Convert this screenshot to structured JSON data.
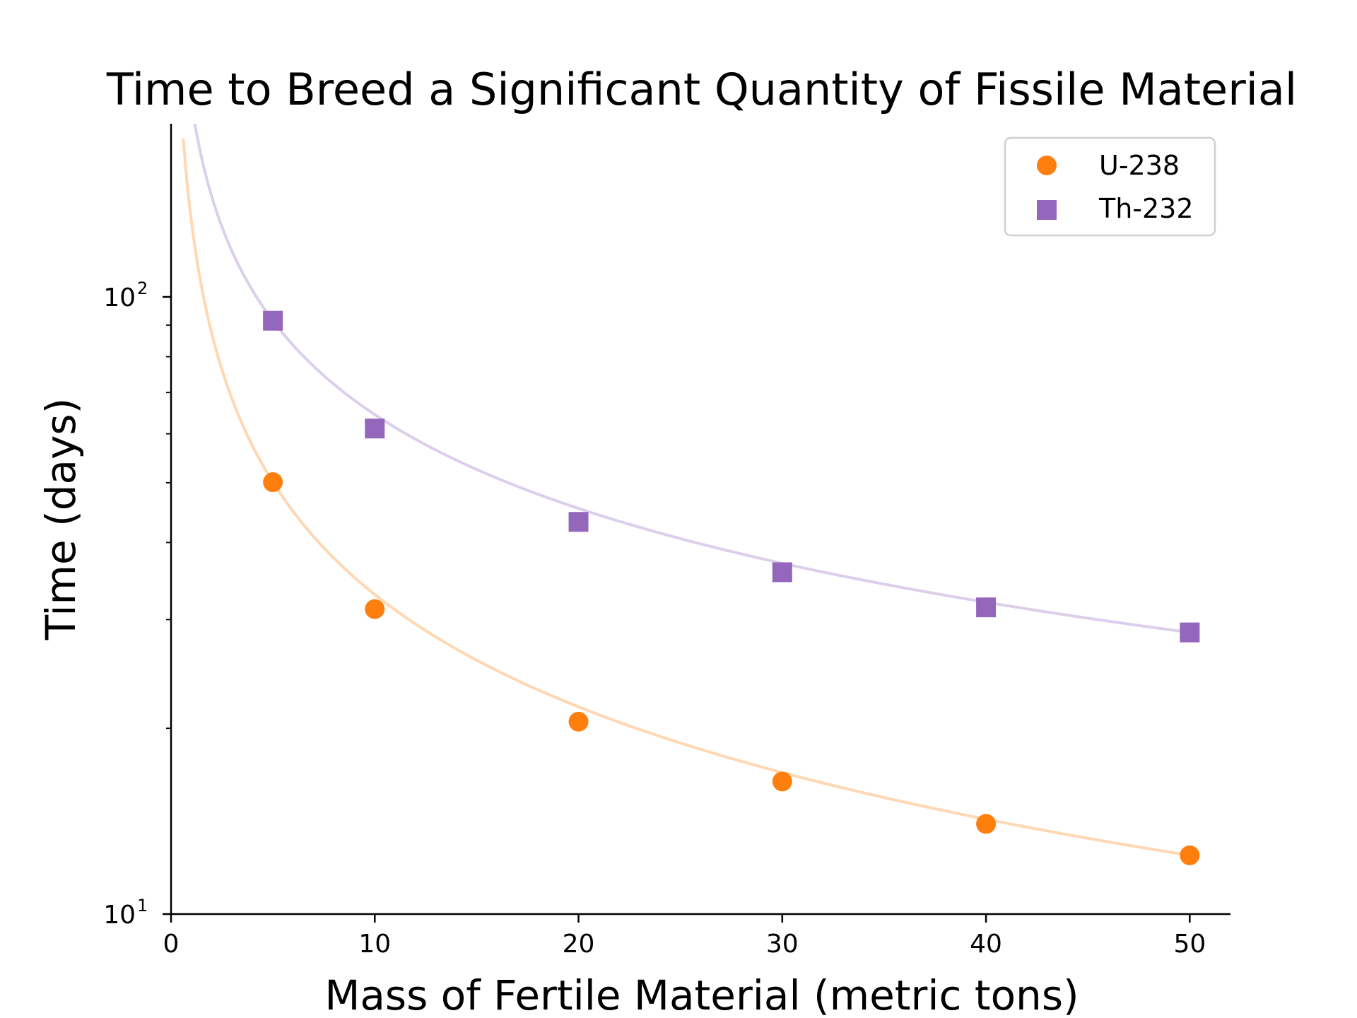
{
  "chart_data": {
    "type": "scatter",
    "title": "Time to Breed a Significant Quantity of Fissile Material",
    "xlabel": "Mass of Fertile Material (metric tons)",
    "ylabel": "Time (days)",
    "xlim": [
      0,
      52
    ],
    "ylim": [
      10,
      200
    ],
    "yscale": "log",
    "grid": false,
    "legend_position": "top-right",
    "x_ticks": [
      "0",
      "10",
      "20",
      "30",
      "40",
      "50"
    ],
    "y_ticks": [
      {
        "base": "10",
        "exp": "1"
      },
      {
        "base": "10",
        "exp": "2"
      }
    ],
    "series": [
      {
        "name": "U-238",
        "marker": "circle",
        "color": "#ff7f0e",
        "line_color": "#ffd7b3",
        "x": [
          5,
          10,
          20,
          30,
          40,
          50
        ],
        "y": [
          50.1,
          31.2,
          20.5,
          16.4,
          14.0,
          12.45
        ]
      },
      {
        "name": "Th-232",
        "marker": "square",
        "color": "#9467bd",
        "line_color": "#dccfec",
        "x": [
          5,
          10,
          20,
          30,
          40,
          50
        ],
        "y": [
          91.5,
          61.2,
          43.2,
          35.8,
          31.4,
          28.6
        ]
      }
    ]
  }
}
